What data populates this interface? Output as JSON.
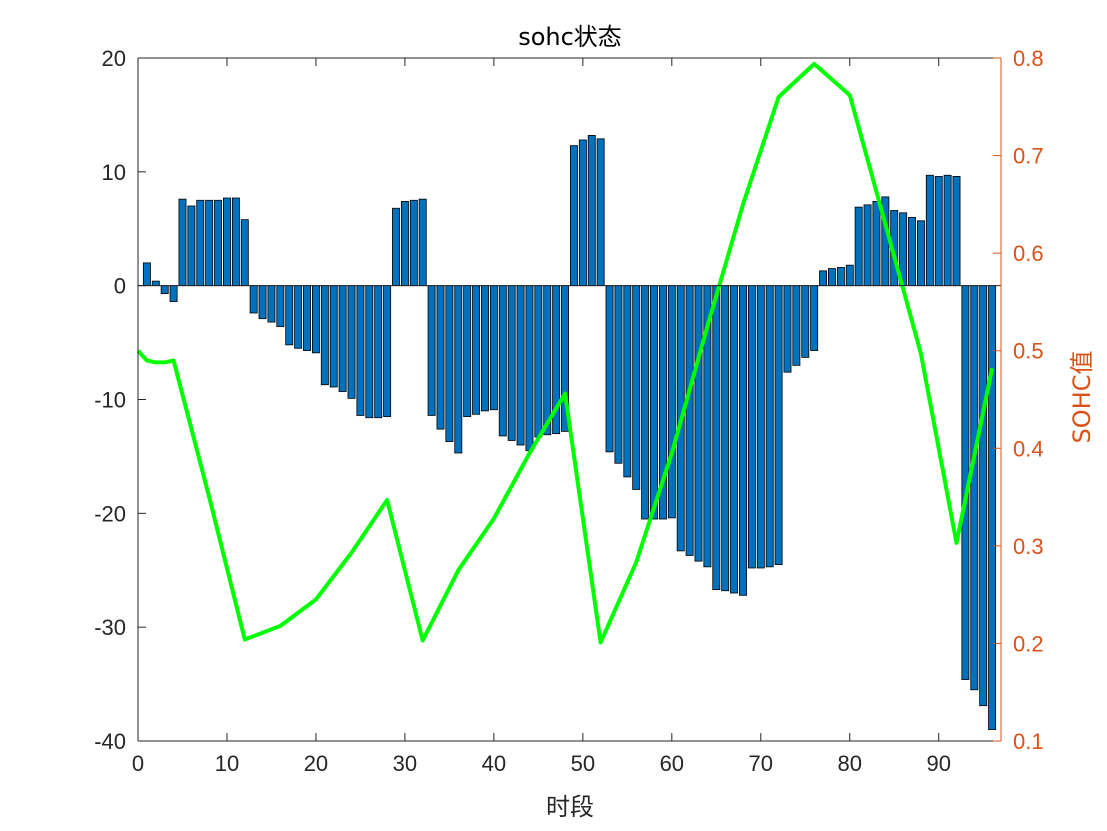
{
  "chart_data": {
    "type": "bar+line",
    "title": "sohc状态",
    "xlabel": "时段",
    "ylabel_left": "",
    "ylabel_right": "SOHC值",
    "xlim": [
      0,
      97
    ],
    "ylim_left": [
      -40,
      20
    ],
    "ylim_right": [
      0.1,
      0.8
    ],
    "xticks": [
      0,
      10,
      20,
      30,
      40,
      50,
      60,
      70,
      80,
      90
    ],
    "yticks_left": [
      -40,
      -30,
      -20,
      -10,
      0,
      10,
      20
    ],
    "yticks_right": [
      0.1,
      0.2,
      0.3,
      0.4,
      0.5,
      0.6,
      0.7,
      0.8
    ],
    "grid": false,
    "colors": {
      "bar_fill": "#0072BD",
      "bar_edge": "#000000",
      "line": "#00FF00",
      "left_axis": "#262626",
      "right_axis": "#D95319"
    },
    "bars": {
      "x": [
        1,
        2,
        3,
        4,
        5,
        6,
        7,
        8,
        9,
        10,
        11,
        12,
        13,
        14,
        15,
        16,
        17,
        18,
        19,
        20,
        21,
        22,
        23,
        24,
        25,
        26,
        27,
        28,
        29,
        30,
        31,
        32,
        33,
        34,
        35,
        36,
        37,
        38,
        39,
        40,
        41,
        42,
        43,
        44,
        45,
        46,
        47,
        48,
        49,
        50,
        51,
        52,
        53,
        54,
        55,
        56,
        57,
        58,
        59,
        60,
        61,
        62,
        63,
        64,
        65,
        66,
        67,
        68,
        69,
        70,
        71,
        72,
        73,
        74,
        75,
        76,
        77,
        78,
        79,
        80,
        81,
        82,
        83,
        84,
        85,
        86,
        87,
        88,
        89,
        90,
        91,
        92,
        93,
        94,
        95,
        96
      ],
      "values": [
        2.0,
        0.4,
        -0.7,
        -1.4,
        7.6,
        7.0,
        7.5,
        7.5,
        7.5,
        7.7,
        7.7,
        5.8,
        -2.4,
        -2.9,
        -3.2,
        -3.6,
        -5.2,
        -5.5,
        -5.7,
        -5.9,
        -8.7,
        -8.9,
        -9.3,
        -9.9,
        -11.4,
        -11.6,
        -11.6,
        -11.5,
        6.8,
        7.4,
        7.5,
        7.6,
        -11.4,
        -12.6,
        -13.7,
        -14.7,
        -11.5,
        -11.3,
        -11.0,
        -10.9,
        -13.2,
        -13.6,
        -14.0,
        -14.5,
        -13.3,
        -13.1,
        -13.0,
        -12.8,
        12.3,
        12.8,
        13.2,
        12.9,
        -14.6,
        -15.6,
        -16.8,
        -17.9,
        -20.5,
        -20.5,
        -20.5,
        -20.4,
        -23.3,
        -23.7,
        -24.2,
        -24.7,
        -26.7,
        -26.8,
        -27.0,
        -27.2,
        -24.8,
        -24.8,
        -24.7,
        -24.5,
        -7.6,
        -7.0,
        -6.3,
        -5.7,
        1.3,
        1.5,
        1.6,
        1.8,
        6.9,
        7.1,
        7.4,
        7.8,
        6.6,
        6.4,
        6.0,
        5.7,
        9.7,
        9.6,
        9.7,
        9.6,
        -34.6,
        -35.5,
        -36.9,
        -39.0
      ]
    },
    "line": {
      "x": [
        0,
        1,
        2,
        3,
        4,
        8,
        12,
        16,
        20,
        24,
        28,
        32,
        36,
        40,
        44,
        48,
        52,
        56,
        60,
        64,
        68,
        72,
        76,
        80,
        84,
        88,
        92,
        96
      ],
      "values": [
        0.5,
        0.49,
        0.488,
        0.488,
        0.49,
        0.35,
        0.204,
        0.218,
        0.245,
        0.293,
        0.347,
        0.203,
        0.275,
        0.328,
        0.395,
        0.456,
        0.201,
        0.283,
        0.395,
        0.525,
        0.65,
        0.76,
        0.794,
        0.762,
        0.63,
        0.497,
        0.303,
        0.482
      ]
    }
  }
}
